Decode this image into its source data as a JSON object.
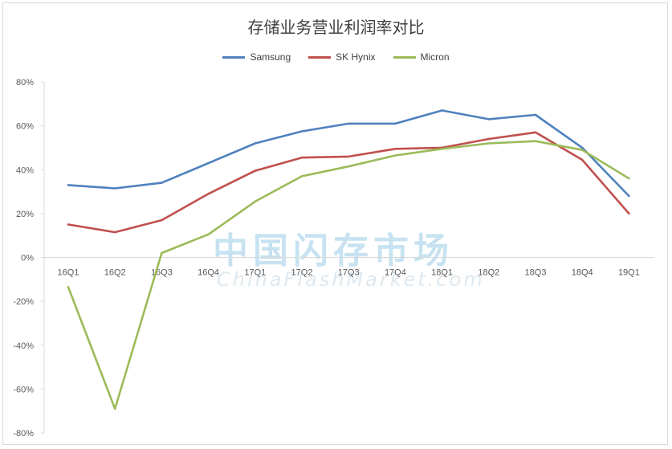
{
  "chart_data": {
    "type": "line",
    "title": "存储业务营业利润率对比",
    "categories": [
      "16Q1",
      "16Q2",
      "16Q3",
      "16Q4",
      "17Q1",
      "17Q2",
      "17Q3",
      "17Q4",
      "18Q1",
      "18Q2",
      "18Q3",
      "18Q4",
      "19Q1"
    ],
    "yticks": [
      "80%",
      "60%",
      "40%",
      "20%",
      "0%",
      "-20%",
      "-40%",
      "-60%",
      "-80%"
    ],
    "ylim": [
      -80,
      80
    ],
    "legend_position": "top",
    "grid": false,
    "series": [
      {
        "name": "Samsung",
        "color": "#4f81bd",
        "values": [
          33,
          31.5,
          34,
          43,
          52,
          57.5,
          61,
          61,
          67,
          63,
          65,
          50,
          28
        ]
      },
      {
        "name": "SK Hynix",
        "color": "#c0504d",
        "values": [
          15,
          11.5,
          17,
          29,
          39.5,
          45.5,
          46,
          49.5,
          50,
          54,
          57,
          44.5,
          20
        ]
      },
      {
        "name": "Micron",
        "color": "#9bbb59",
        "values": [
          -13.5,
          -69,
          2,
          10.5,
          25.5,
          37,
          41.5,
          46.5,
          49.5,
          52,
          53,
          49,
          36
        ]
      }
    ]
  },
  "watermark": {
    "cn": "中国闪存市场",
    "en": "ChinaFlashMarket.com"
  }
}
